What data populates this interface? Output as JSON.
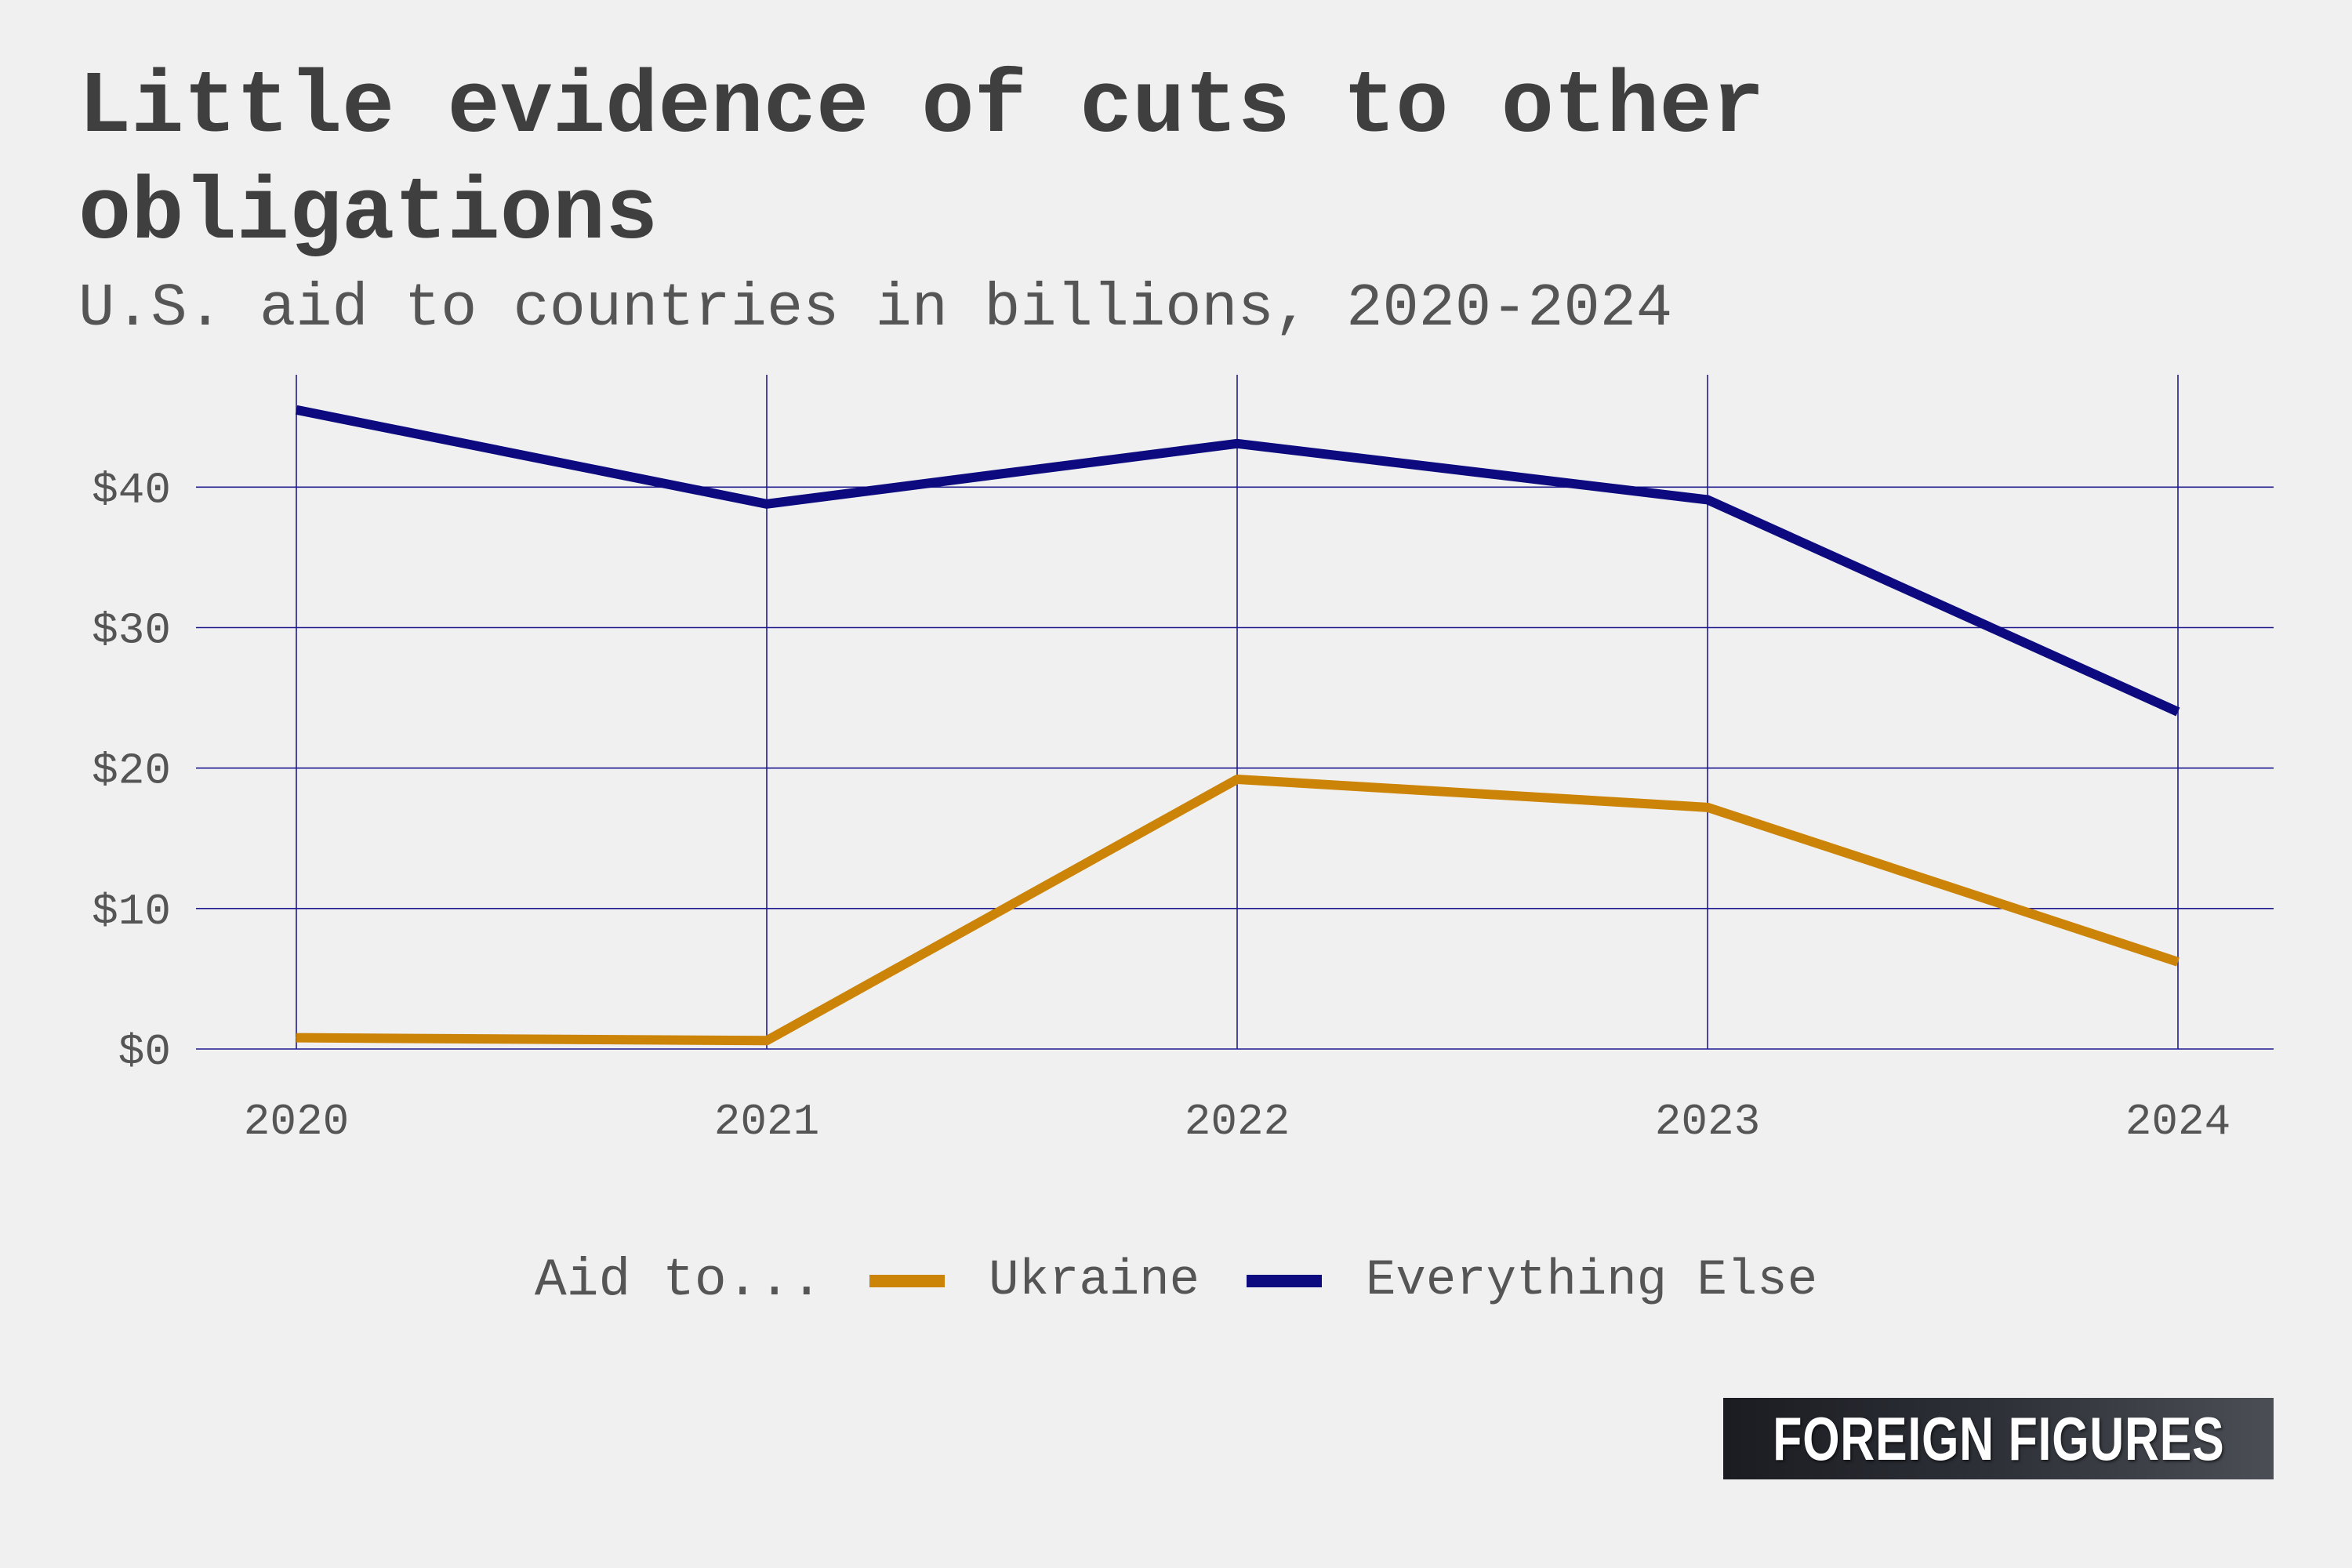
{
  "header": {
    "title": "Little evidence of cuts to other obligations",
    "subtitle": "U.S. aid to countries in billions, 2020-2024"
  },
  "legend": {
    "title": "Aid to...",
    "items": [
      {
        "label": "Ukraine",
        "color": "#cc8408"
      },
      {
        "label": "Everything Else",
        "color": "#0c0a7e"
      }
    ]
  },
  "brand": {
    "text": "FOREIGN FIGURES"
  },
  "colors": {
    "grid": "#1f1b8f",
    "tick_text": "#555555",
    "background": "#f0f0f0"
  },
  "chart_data": {
    "type": "line",
    "title": "Little evidence of cuts to other obligations",
    "subtitle": "U.S. aid to countries in billions, 2020-2024",
    "x": [
      "2020",
      "2021",
      "2022",
      "2023",
      "2024"
    ],
    "y_ticks": [
      0,
      10,
      20,
      30,
      40
    ],
    "y_tick_labels": [
      "$0",
      "$10",
      "$20",
      "$30",
      "$40"
    ],
    "ylim": [
      0,
      48
    ],
    "grid": true,
    "legend_position": "bottom",
    "series": [
      {
        "name": "Ukraine",
        "color": "#cc8408",
        "values": [
          0.8,
          0.6,
          19.2,
          17.2,
          6.2
        ]
      },
      {
        "name": "Everything Else",
        "color": "#0c0a7e",
        "values": [
          45.5,
          38.8,
          43.1,
          39.1,
          24.0
        ]
      }
    ]
  }
}
